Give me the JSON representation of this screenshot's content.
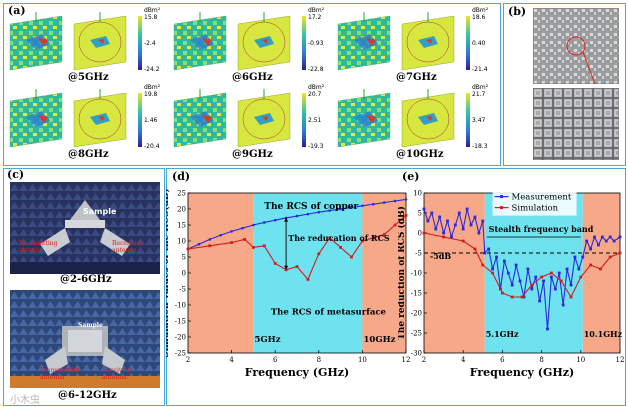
{
  "panels": {
    "a": {
      "label": "(a)",
      "maps": [
        {
          "freq": "@5GHz",
          "unit": "dBm²",
          "cb_max": "15.8",
          "cb_mid": "-2.4",
          "cb_min": "-24.2"
        },
        {
          "freq": "@6GHz",
          "unit": "dBm²",
          "cb_max": "17.2",
          "cb_mid": "-0.93",
          "cb_min": "-22.8"
        },
        {
          "freq": "@7GHz",
          "unit": "dBm²",
          "cb_max": "18.6",
          "cb_mid": "0.40",
          "cb_min": "-21.4"
        },
        {
          "freq": "@8GHz",
          "unit": "dBm²",
          "cb_max": "19.8",
          "cb_mid": "1.46",
          "cb_min": "-20.4"
        },
        {
          "freq": "@9GHz",
          "unit": "dBm²",
          "cb_max": "20.7",
          "cb_mid": "2.51",
          "cb_min": "-19.3"
        },
        {
          "freq": "@10GHz",
          "unit": "dBm²",
          "cb_max": "21.7",
          "cb_mid": "3.47",
          "cb_min": "-18.3"
        }
      ]
    },
    "b": {
      "label": "(b)"
    },
    "c": {
      "label": "(c)",
      "photo1": {
        "sample": "Sample",
        "tx": "Transmitting antenna",
        "rx": "Receiving antenna",
        "caption": "@2-6GHz"
      },
      "photo2": {
        "sample": "Sample",
        "tx": "Transmitting antenna",
        "rx": "Receiving antenna",
        "caption": "@6-12GHz"
      }
    },
    "d": {
      "label": "(d)"
    },
    "e": {
      "label": "(e)"
    }
  },
  "watermark": "小木虫",
  "colors": {
    "orange": "#f7a889",
    "cyan": "#6fe2f0",
    "blue": "#2a2ad8",
    "red": "#d21c1c",
    "frame": "#4aa8d8"
  },
  "chart_data": [
    {
      "type": "line",
      "id": "d",
      "xlabel": "Frequency (GHz)",
      "ylabel": "Simulation values of the RCS(dB)",
      "xlim": [
        2,
        12
      ],
      "ylim": [
        -25,
        25
      ],
      "xticks": [
        2,
        4,
        6,
        8,
        10,
        12
      ],
      "yticks": [
        -25,
        -20,
        -15,
        -10,
        -5,
        0,
        5,
        10,
        15,
        20,
        25
      ],
      "bands": [
        {
          "from": 2,
          "to": 5,
          "color": "orange"
        },
        {
          "from": 5,
          "to": 10,
          "color": "cyan"
        },
        {
          "from": 10,
          "to": 12,
          "color": "orange"
        }
      ],
      "annotations": {
        "copper": "The RCS of copper",
        "reduction": "The reducation of RCS",
        "meta": "The RCS of metasurface",
        "band_start": "5GHz",
        "band_end": "10GHz"
      },
      "series": [
        {
          "name": "The RCS of copper",
          "color": "blue",
          "x": [
            2,
            2.5,
            3,
            3.5,
            4,
            4.5,
            5,
            5.5,
            6,
            6.5,
            7,
            7.5,
            8,
            8.5,
            9,
            9.5,
            10,
            10.5,
            11,
            11.5,
            12
          ],
          "y": [
            7.5,
            9,
            10.5,
            11.8,
            13,
            14,
            15,
            15.8,
            16.5,
            17.2,
            17.8,
            18.4,
            19,
            19.5,
            20,
            20.5,
            21,
            21.5,
            22,
            22.5,
            23
          ]
        },
        {
          "name": "The RCS of metasurface",
          "color": "red",
          "x": [
            2,
            3,
            4,
            4.6,
            5,
            5.5,
            6,
            6.5,
            7,
            7.5,
            8,
            8.5,
            9,
            9.5,
            10,
            10.5,
            11,
            11.5,
            12
          ],
          "y": [
            7.5,
            8.5,
            9.5,
            10.5,
            8,
            8.5,
            3,
            1,
            2,
            -2,
            6,
            11,
            8,
            5,
            10,
            11,
            12,
            15,
            18
          ]
        }
      ]
    },
    {
      "type": "line",
      "id": "e",
      "xlabel": "Frequency (GHz)",
      "ylabel": "The reduction of RCS (dB)",
      "xlim": [
        2,
        12
      ],
      "ylim": [
        -30,
        10
      ],
      "xticks": [
        2,
        4,
        6,
        8,
        10,
        12
      ],
      "yticks": [
        -30,
        -25,
        -20,
        -15,
        -10,
        -5,
        0,
        5,
        10
      ],
      "bands": [
        {
          "from": 2,
          "to": 5.1,
          "color": "orange"
        },
        {
          "from": 5.1,
          "to": 10.1,
          "color": "cyan"
        },
        {
          "from": 10.1,
          "to": 12,
          "color": "orange"
        }
      ],
      "threshold": {
        "y": -5,
        "label": "-5dB"
      },
      "annotations": {
        "stealth": "Stealth frequency band",
        "band_start": "5.1GHz",
        "band_end": "10.1GHz"
      },
      "legend": [
        "Measurement",
        "Simulation"
      ],
      "series": [
        {
          "name": "Measurement",
          "color": "blue",
          "x": [
            2,
            2.2,
            2.4,
            2.6,
            2.8,
            3,
            3.2,
            3.4,
            3.6,
            3.8,
            4,
            4.2,
            4.4,
            4.6,
            4.8,
            5,
            5.1,
            5.3,
            5.5,
            5.7,
            5.9,
            6.1,
            6.3,
            6.5,
            6.7,
            6.9,
            7.1,
            7.3,
            7.5,
            7.7,
            7.9,
            8.1,
            8.3,
            8.5,
            8.7,
            8.9,
            9.1,
            9.3,
            9.5,
            9.7,
            9.9,
            10.1,
            10.3,
            10.5,
            10.7,
            10.9,
            11.1,
            11.3,
            11.5,
            11.7,
            12
          ],
          "y": [
            6,
            3,
            5,
            1,
            4,
            0,
            3,
            -1,
            2,
            5,
            1,
            6,
            2,
            4,
            0,
            3,
            -5,
            -4,
            -9,
            -6,
            -14,
            -7,
            -10,
            -13,
            -8,
            -12,
            -16,
            -9,
            -14,
            -11,
            -17,
            -12,
            -24,
            -11,
            -14,
            -10,
            -18,
            -9,
            -13,
            -6,
            -9,
            -6,
            -2,
            -4,
            -1,
            -3,
            -1,
            -2,
            -1,
            -2,
            -1
          ]
        },
        {
          "name": "Simulation",
          "color": "red",
          "x": [
            2,
            3,
            4,
            4.6,
            5,
            5.5,
            6,
            6.5,
            7,
            7.5,
            8,
            8.5,
            9,
            9.5,
            10,
            10.5,
            11,
            11.5,
            12
          ],
          "y": [
            0,
            -1,
            -2,
            -4,
            -8,
            -10,
            -15,
            -16,
            -16,
            -13,
            -11,
            -10,
            -12,
            -16,
            -11,
            -8,
            -9,
            -6,
            -5
          ]
        }
      ]
    }
  ]
}
